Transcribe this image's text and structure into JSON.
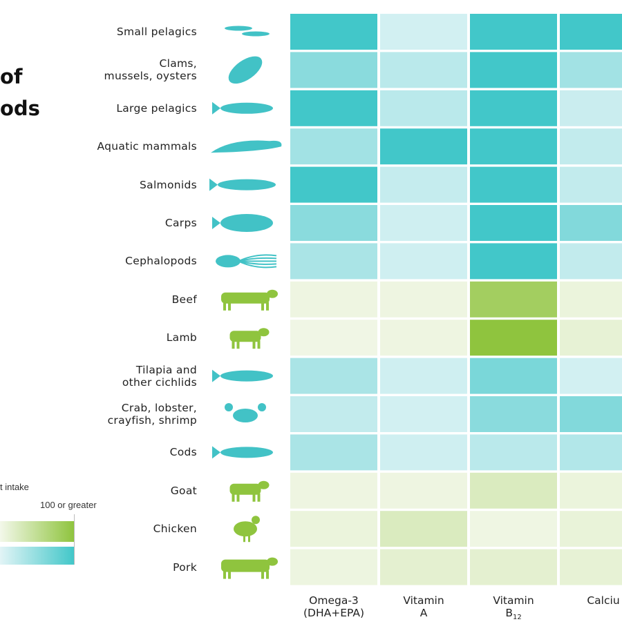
{
  "title_fragments": [
    "of",
    "ods"
  ],
  "legend": {
    "caption_fragment": "t intake",
    "max_label": "100 or greater",
    "aquatic_color": "#42c7c9",
    "terrestrial_color": "#8fc43e"
  },
  "chart_data": {
    "type": "heatmap",
    "columns": [
      {
        "lines": [
          "Omega-3",
          "(DHA+EPA)"
        ]
      },
      {
        "lines": [
          "Vitamin",
          "A"
        ]
      },
      {
        "lines": [
          "Vitamin",
          "B",
          "12"
        ]
      },
      {
        "lines": [
          "Calciu"
        ]
      }
    ],
    "value_range": [
      0,
      100
    ],
    "rows": [
      {
        "lines": [
          "Small pelagics"
        ],
        "group": "aquatic",
        "icon": "small-pelagics-icon",
        "values": [
          100,
          10,
          100,
          100
        ]
      },
      {
        "lines": [
          "Clams,",
          "mussels, oysters"
        ],
        "group": "aquatic",
        "icon": "clam-icon",
        "values": [
          55,
          25,
          100,
          40
        ]
      },
      {
        "lines": [
          "Large pelagics"
        ],
        "group": "aquatic",
        "icon": "tuna-icon",
        "values": [
          100,
          25,
          100,
          15
        ]
      },
      {
        "lines": [
          "Aquatic mammals"
        ],
        "group": "aquatic",
        "icon": "seal-icon",
        "values": [
          40,
          100,
          100,
          20
        ]
      },
      {
        "lines": [
          "Salmonids"
        ],
        "group": "aquatic",
        "icon": "salmon-icon",
        "values": [
          100,
          18,
          100,
          20
        ]
      },
      {
        "lines": [
          "Carps"
        ],
        "group": "aquatic",
        "icon": "carp-icon",
        "values": [
          55,
          12,
          100,
          60
        ]
      },
      {
        "lines": [
          "Cephalopods"
        ],
        "group": "aquatic",
        "icon": "squid-icon",
        "values": [
          35,
          12,
          100,
          20
        ]
      },
      {
        "lines": [
          "Beef"
        ],
        "group": "terrestrial",
        "icon": "cow-icon",
        "values": [
          5,
          5,
          80,
          8
        ]
      },
      {
        "lines": [
          "Lamb"
        ],
        "group": "terrestrial",
        "icon": "sheep-icon",
        "values": [
          3,
          5,
          100,
          12
        ]
      },
      {
        "lines": [
          "Tilapia and",
          "other cichlids"
        ],
        "group": "aquatic",
        "icon": "tilapia-icon",
        "values": [
          35,
          12,
          65,
          10
        ]
      },
      {
        "lines": [
          "Crab, lobster,",
          "crayfish, shrimp"
        ],
        "group": "aquatic",
        "icon": "crab-icon",
        "values": [
          20,
          10,
          55,
          60
        ]
      },
      {
        "lines": [
          "Cods"
        ],
        "group": "aquatic",
        "icon": "cod-icon",
        "values": [
          35,
          12,
          25,
          30
        ]
      },
      {
        "lines": [
          "Goat"
        ],
        "group": "terrestrial",
        "icon": "goat-icon",
        "values": [
          5,
          5,
          25,
          8
        ]
      },
      {
        "lines": [
          "Chicken"
        ],
        "group": "terrestrial",
        "icon": "chicken-icon",
        "values": [
          8,
          25,
          4,
          10
        ]
      },
      {
        "lines": [
          "Pork"
        ],
        "group": "terrestrial",
        "icon": "pig-icon",
        "values": [
          6,
          15,
          15,
          12
        ]
      }
    ]
  }
}
